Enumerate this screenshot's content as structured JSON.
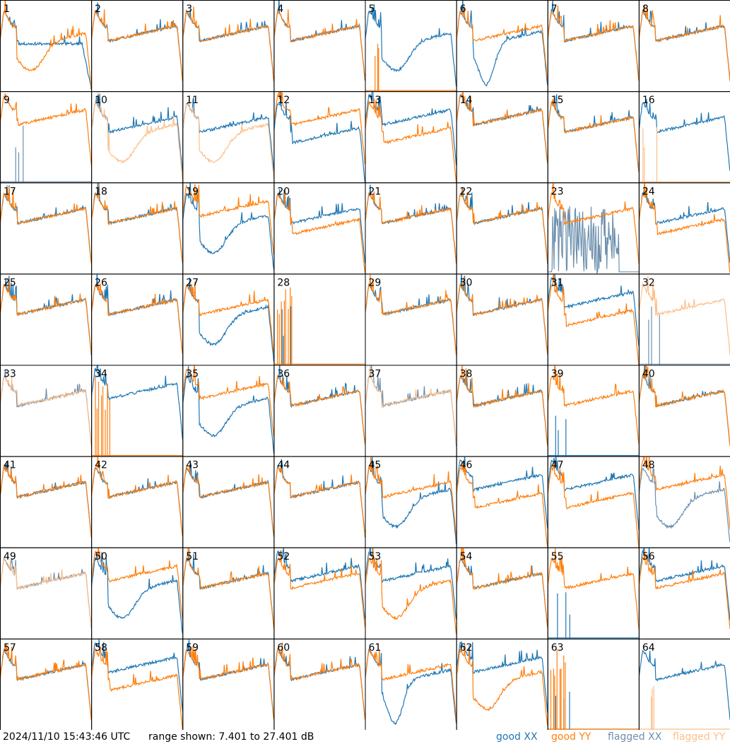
{
  "footer": {
    "timestamp": "2024/11/10 15:43:46 UTC",
    "range_text": "range shown: 7.401 to 27.401 dB"
  },
  "legend": [
    {
      "label": "good XX",
      "color": "#1f77b4"
    },
    {
      "label": "good YY",
      "color": "#ff7f0e"
    },
    {
      "label": "flagged XX",
      "color": "#6d8fad"
    },
    {
      "label": "flagged YY",
      "color": "#fdbf8a"
    }
  ],
  "chart_data": {
    "type": "line",
    "grid": {
      "rows": 8,
      "cols": 8
    },
    "ylim": [
      7.401,
      27.401
    ],
    "yunit": "dB",
    "panels": [
      {
        "label": "1",
        "xx": "good",
        "yy": "good",
        "xx_shape": "drop",
        "yy_shape": "dip"
      },
      {
        "label": "2",
        "xx": "good",
        "yy": "good",
        "xx_shape": "flat",
        "yy_shape": "flat"
      },
      {
        "label": "3",
        "xx": "good",
        "yy": "good",
        "xx_shape": "flat",
        "yy_shape": "flat"
      },
      {
        "label": "4",
        "xx": "good",
        "yy": "good",
        "xx_shape": "flat",
        "yy_shape": "flat"
      },
      {
        "label": "5",
        "xx": "good",
        "yy": "good",
        "xx_shape": "dip",
        "yy_shape": "dead"
      },
      {
        "label": "6",
        "xx": "good",
        "yy": "good",
        "xx_shape": "deepdip",
        "yy_shape": "flat"
      },
      {
        "label": "7",
        "xx": "good",
        "yy": "good",
        "xx_shape": "flat",
        "yy_shape": "flat"
      },
      {
        "label": "8",
        "xx": "good",
        "yy": "good",
        "xx_shape": "flat",
        "yy_shape": "flat"
      },
      {
        "label": "9",
        "xx": "flagged",
        "yy": "good",
        "xx_shape": "dead",
        "yy_shape": "high"
      },
      {
        "label": "10",
        "xx": "good",
        "yy": "flagged",
        "xx_shape": "flat",
        "yy_shape": "dip"
      },
      {
        "label": "11",
        "xx": "good",
        "yy": "flagged",
        "xx_shape": "flat",
        "yy_shape": "dip"
      },
      {
        "label": "12",
        "xx": "good",
        "yy": "good",
        "xx_shape": "lower",
        "yy_shape": "high"
      },
      {
        "label": "13",
        "xx": "good",
        "yy": "good",
        "xx_shape": "high",
        "yy_shape": "lower"
      },
      {
        "label": "14",
        "xx": "good",
        "yy": "good",
        "xx_shape": "high",
        "yy_shape": "high"
      },
      {
        "label": "15",
        "xx": "good",
        "yy": "good",
        "xx_shape": "flat",
        "yy_shape": "flat"
      },
      {
        "label": "16",
        "xx": "good",
        "yy": "flagged",
        "xx_shape": "flat",
        "yy_shape": "dead"
      },
      {
        "label": "17",
        "xx": "good",
        "yy": "good",
        "xx_shape": "flat",
        "yy_shape": "flat"
      },
      {
        "label": "18",
        "xx": "good",
        "yy": "good",
        "xx_shape": "flat",
        "yy_shape": "flat"
      },
      {
        "label": "19",
        "xx": "good",
        "yy": "good",
        "xx_shape": "dip",
        "yy_shape": "high"
      },
      {
        "label": "20",
        "xx": "good",
        "yy": "good",
        "xx_shape": "flat",
        "yy_shape": "lower"
      },
      {
        "label": "21",
        "xx": "good",
        "yy": "good",
        "xx_shape": "flat",
        "yy_shape": "flat"
      },
      {
        "label": "22",
        "xx": "good",
        "yy": "good",
        "xx_shape": "flat",
        "yy_shape": "flat"
      },
      {
        "label": "23",
        "xx": "flagged",
        "yy": "good",
        "xx_shape": "noise",
        "yy_shape": "flat"
      },
      {
        "label": "24",
        "xx": "good",
        "yy": "good",
        "xx_shape": "flat",
        "yy_shape": "lower"
      },
      {
        "label": "25",
        "xx": "good",
        "yy": "good",
        "xx_shape": "flat",
        "yy_shape": "flat"
      },
      {
        "label": "26",
        "xx": "good",
        "yy": "good",
        "xx_shape": "flat",
        "yy_shape": "flat"
      },
      {
        "label": "27",
        "xx": "good",
        "yy": "good",
        "xx_shape": "dip",
        "yy_shape": "flat"
      },
      {
        "label": "28",
        "xx": "good",
        "yy": "good",
        "xx_shape": "dead",
        "yy_shape": "spikes"
      },
      {
        "label": "29",
        "xx": "good",
        "yy": "good",
        "xx_shape": "flat",
        "yy_shape": "flat"
      },
      {
        "label": "30",
        "xx": "good",
        "yy": "good",
        "xx_shape": "flat",
        "yy_shape": "flat"
      },
      {
        "label": "31",
        "xx": "good",
        "yy": "good",
        "xx_shape": "high",
        "yy_shape": "lower"
      },
      {
        "label": "32",
        "xx": "flagged",
        "yy": "flagged",
        "xx_shape": "dead",
        "yy_shape": "flat"
      },
      {
        "label": "33",
        "xx": "flagged",
        "yy": "flagged",
        "xx_shape": "flat",
        "yy_shape": "flat"
      },
      {
        "label": "34",
        "xx": "good",
        "yy": "good",
        "xx_shape": "high",
        "yy_shape": "spikes"
      },
      {
        "label": "35",
        "xx": "good",
        "yy": "good",
        "xx_shape": "dip",
        "yy_shape": "high"
      },
      {
        "label": "36",
        "xx": "good",
        "yy": "good",
        "xx_shape": "flat",
        "yy_shape": "flat"
      },
      {
        "label": "37",
        "xx": "flagged",
        "yy": "flagged",
        "xx_shape": "flat",
        "yy_shape": "flat"
      },
      {
        "label": "38",
        "xx": "good",
        "yy": "good",
        "xx_shape": "flat",
        "yy_shape": "flat"
      },
      {
        "label": "39",
        "xx": "good",
        "yy": "good",
        "xx_shape": "dead",
        "yy_shape": "flat"
      },
      {
        "label": "40",
        "xx": "good",
        "yy": "good",
        "xx_shape": "flat",
        "yy_shape": "flat"
      },
      {
        "label": "41",
        "xx": "good",
        "yy": "good",
        "xx_shape": "flat",
        "yy_shape": "flat"
      },
      {
        "label": "42",
        "xx": "good",
        "yy": "good",
        "xx_shape": "flat",
        "yy_shape": "flat"
      },
      {
        "label": "43",
        "xx": "good",
        "yy": "good",
        "xx_shape": "flat",
        "yy_shape": "flat"
      },
      {
        "label": "44",
        "xx": "good",
        "yy": "good",
        "xx_shape": "flat",
        "yy_shape": "flat"
      },
      {
        "label": "45",
        "xx": "good",
        "yy": "good",
        "xx_shape": "dip",
        "yy_shape": "flat"
      },
      {
        "label": "46",
        "xx": "good",
        "yy": "good",
        "xx_shape": "high",
        "yy_shape": "lower"
      },
      {
        "label": "47",
        "xx": "good",
        "yy": "good",
        "xx_shape": "high",
        "yy_shape": "lower"
      },
      {
        "label": "48",
        "xx": "flagged",
        "yy": "good",
        "xx_shape": "dip",
        "yy_shape": "high"
      },
      {
        "label": "49",
        "xx": "flagged",
        "yy": "flagged",
        "xx_shape": "flat",
        "yy_shape": "flat"
      },
      {
        "label": "50",
        "xx": "good",
        "yy": "good",
        "xx_shape": "dip",
        "yy_shape": "high"
      },
      {
        "label": "51",
        "xx": "good",
        "yy": "good",
        "xx_shape": "flat",
        "yy_shape": "flat"
      },
      {
        "label": "52",
        "xx": "good",
        "yy": "good",
        "xx_shape": "high",
        "yy_shape": "flat"
      },
      {
        "label": "53",
        "xx": "good",
        "yy": "good",
        "xx_shape": "high",
        "yy_shape": "dip"
      },
      {
        "label": "54",
        "xx": "good",
        "yy": "good",
        "xx_shape": "flat",
        "yy_shape": "flat"
      },
      {
        "label": "55",
        "xx": "good",
        "yy": "good",
        "xx_shape": "dead",
        "yy_shape": "flat"
      },
      {
        "label": "56",
        "xx": "good",
        "yy": "good",
        "xx_shape": "high",
        "yy_shape": "flat"
      },
      {
        "label": "57",
        "xx": "good",
        "yy": "good",
        "xx_shape": "flat",
        "yy_shape": "flat"
      },
      {
        "label": "58",
        "xx": "good",
        "yy": "good",
        "xx_shape": "high",
        "yy_shape": "lower"
      },
      {
        "label": "59",
        "xx": "good",
        "yy": "good",
        "xx_shape": "flat",
        "yy_shape": "flat"
      },
      {
        "label": "60",
        "xx": "good",
        "yy": "good",
        "xx_shape": "flat",
        "yy_shape": "flat"
      },
      {
        "label": "61",
        "xx": "good",
        "yy": "good",
        "xx_shape": "deepdip",
        "yy_shape": "flat"
      },
      {
        "label": "62",
        "xx": "good",
        "yy": "good",
        "xx_shape": "high",
        "yy_shape": "dip"
      },
      {
        "label": "63",
        "xx": "good",
        "yy": "good",
        "xx_shape": "dead",
        "yy_shape": "spikes"
      },
      {
        "label": "64",
        "xx": "good",
        "yy": "flagged",
        "xx_shape": "flat",
        "yy_shape": "dead"
      }
    ]
  }
}
